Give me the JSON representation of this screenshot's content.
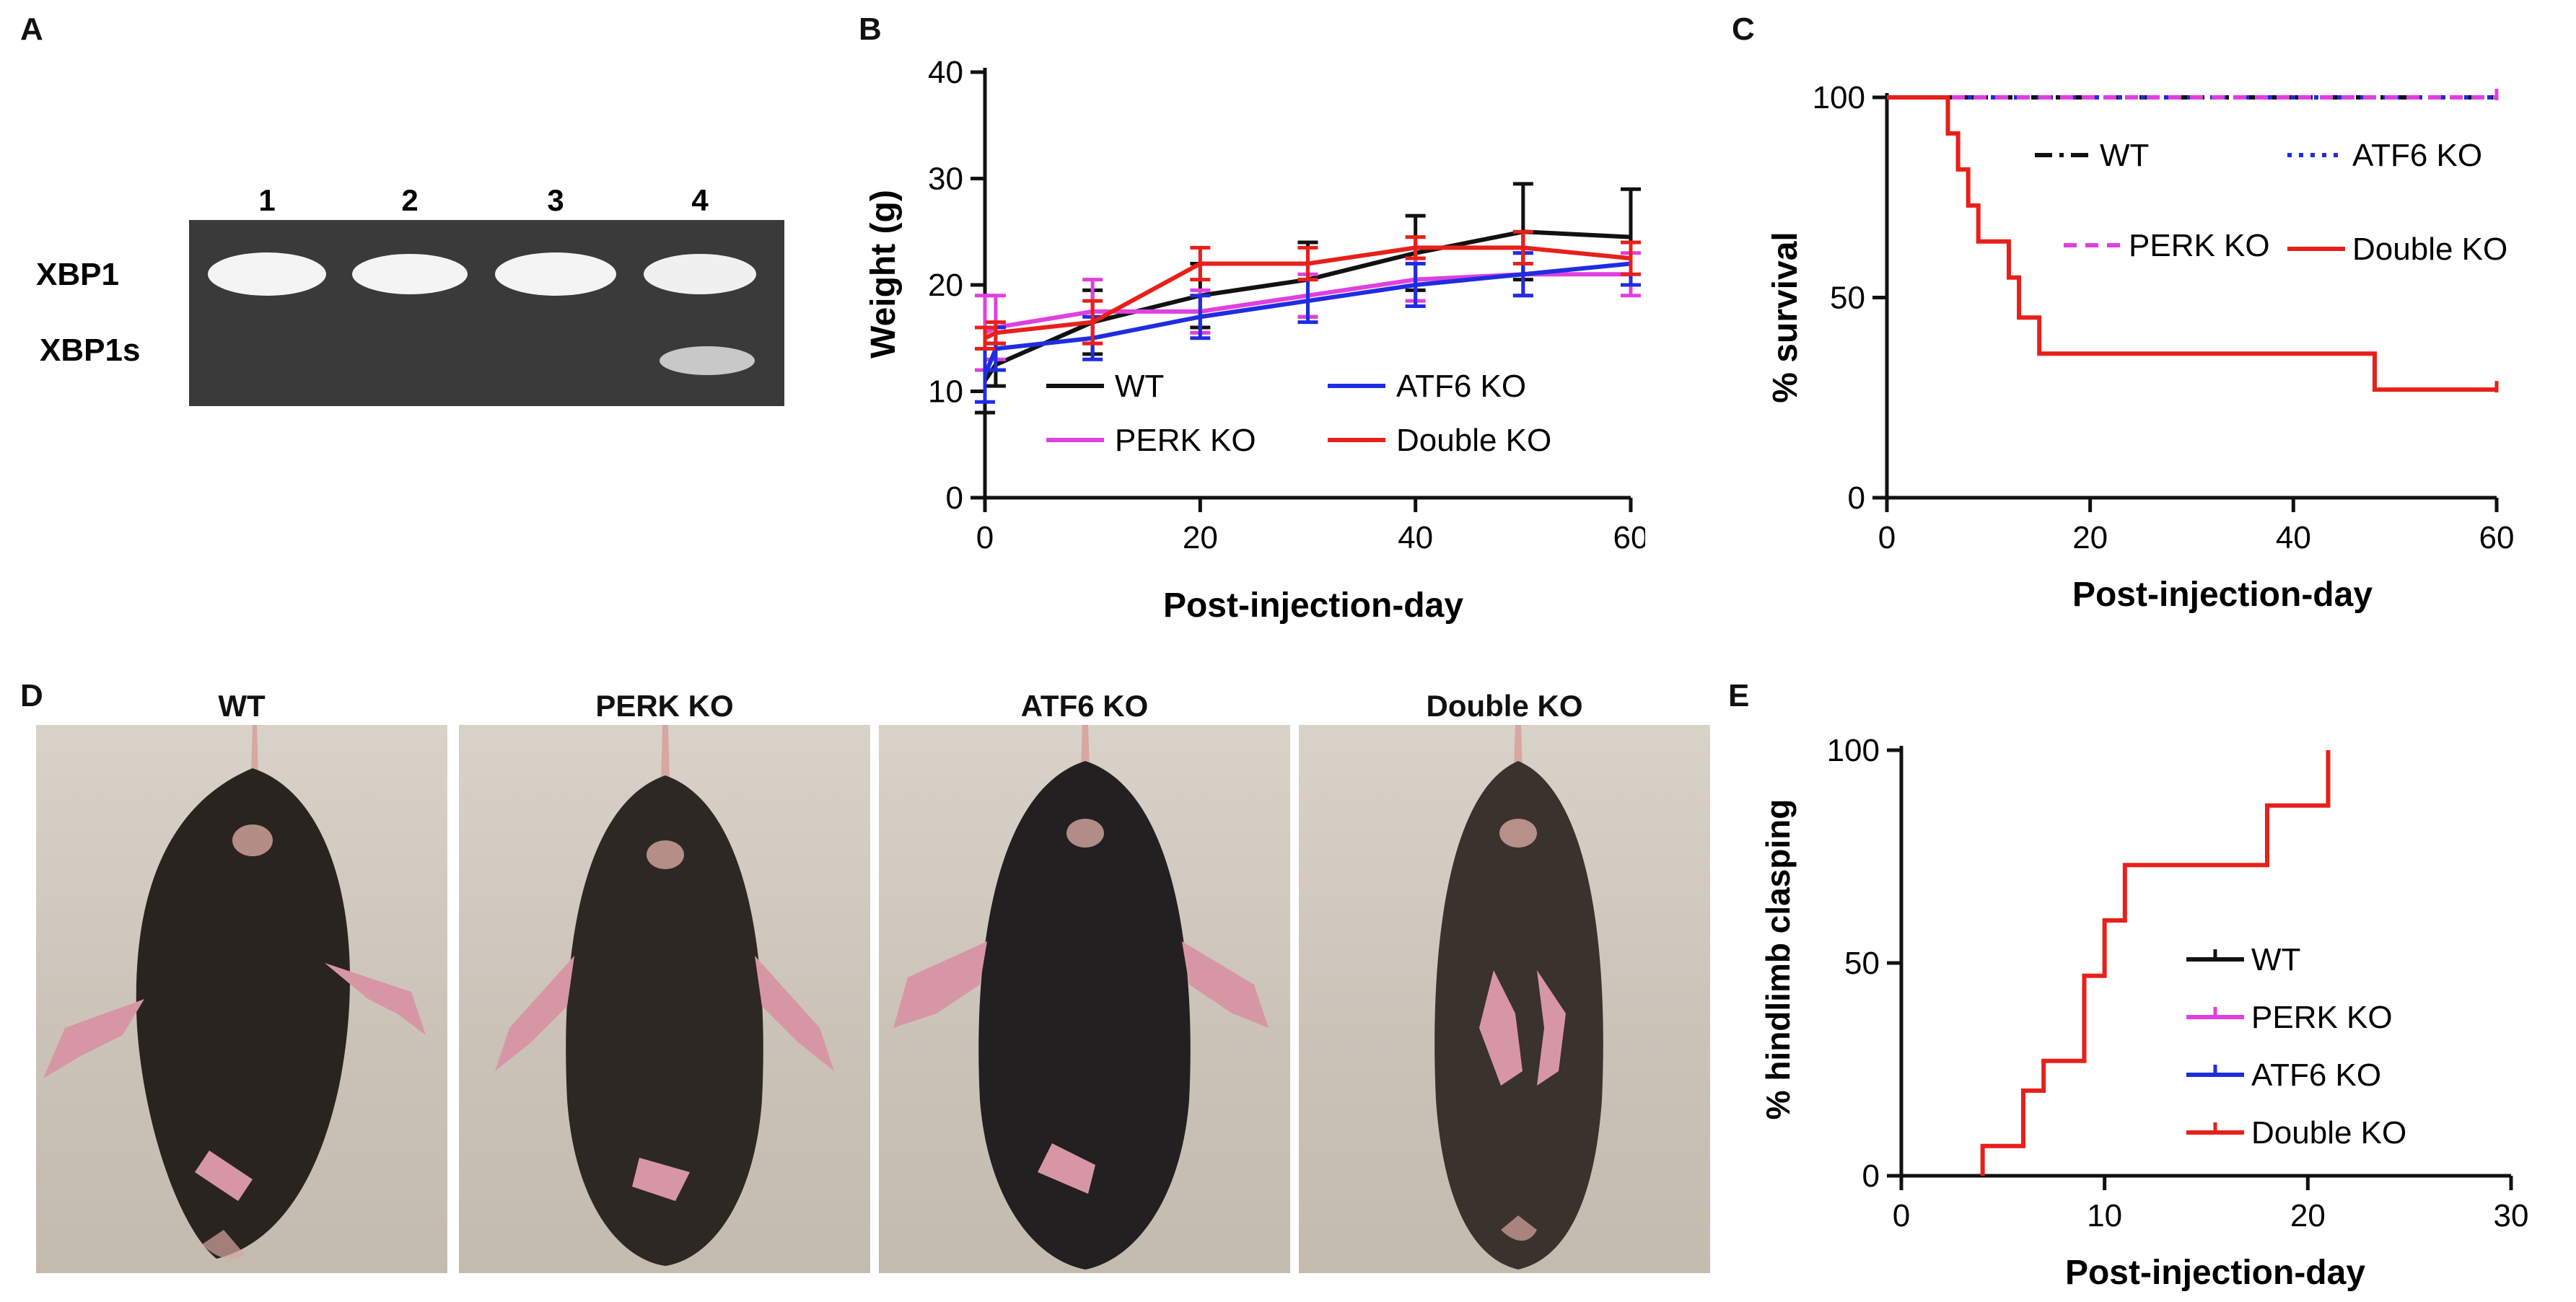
{
  "panel_labels": {
    "a": "A",
    "b": "B",
    "c": "C",
    "d": "D",
    "e": "E"
  },
  "gel": {
    "lanes": [
      "1",
      "2",
      "3",
      "4"
    ],
    "band_labels": [
      "XBP1",
      "XBP1s"
    ],
    "xbp1s_lane_with_band": "4"
  },
  "photos": {
    "titles": [
      "WT",
      "PERK KO",
      "ATF6 KO",
      "Double KO"
    ]
  },
  "colors": {
    "wt": "#111111",
    "perk": "#e040e0",
    "atf6": "#1f2de0",
    "double": "#e8201a"
  },
  "chart_data": [
    {
      "id": "B",
      "type": "line",
      "title": "",
      "xlabel": "Post-injection-day",
      "ylabel": "Weight (g)",
      "xlim": [
        0,
        60
      ],
      "ylim": [
        0,
        40
      ],
      "xticks": [
        "0",
        "20",
        "40",
        "60"
      ],
      "yticks": [
        "0",
        "10",
        "20",
        "30",
        "40"
      ],
      "x": [
        0,
        1,
        10,
        20,
        30,
        40,
        50,
        60
      ],
      "series": [
        {
          "name": "WT",
          "color": "#111111",
          "values": [
            11,
            12.5,
            16.5,
            19,
            20.5,
            23,
            25,
            24.5
          ],
          "err": [
            3,
            2,
            3,
            3,
            3.5,
            3.5,
            4.5,
            4.5
          ]
        },
        {
          "name": "PERK KO",
          "color": "#e040e0",
          "values": [
            15.5,
            16,
            17.5,
            17.5,
            19,
            20.5,
            21,
            21
          ],
          "err": [
            3.5,
            3,
            3,
            2,
            2,
            2,
            2,
            2
          ]
        },
        {
          "name": "ATF6 KO",
          "color": "#1f2de0",
          "values": [
            11.5,
            14,
            15,
            17,
            18.5,
            20,
            21,
            22
          ],
          "err": [
            2.5,
            2,
            2,
            2,
            2,
            2,
            2,
            2
          ]
        },
        {
          "name": "Double KO",
          "color": "#e8201a",
          "values": [
            15,
            15.5,
            16.5,
            22,
            22,
            23.5,
            23.5,
            22.5
          ],
          "err": [
            1,
            1,
            2,
            1.5,
            1.5,
            1,
            1.5,
            1.5
          ]
        }
      ],
      "legend": [
        "WT",
        "ATF6 KO",
        "PERK KO",
        "Double KO"
      ]
    },
    {
      "id": "C",
      "type": "line",
      "title": "",
      "xlabel": "Post-injection-day",
      "ylabel": "% survival",
      "xlim": [
        0,
        60
      ],
      "ylim": [
        0,
        100
      ],
      "xticks": [
        "0",
        "20",
        "40",
        "60"
      ],
      "yticks": [
        "0",
        "50",
        "100"
      ],
      "series": [
        {
          "name": "WT",
          "color": "#111111",
          "x": [
            0,
            60
          ],
          "y": [
            100,
            100
          ]
        },
        {
          "name": "ATF6 KO",
          "color": "#1f2de0",
          "x": [
            0,
            60
          ],
          "y": [
            100,
            100
          ]
        },
        {
          "name": "PERK KO",
          "color": "#e040e0",
          "x": [
            0,
            60
          ],
          "y": [
            100,
            100
          ]
        },
        {
          "name": "Double KO",
          "color": "#e8201a",
          "x": [
            0,
            6,
            7,
            8,
            9,
            12,
            13,
            15,
            48,
            60
          ],
          "y": [
            100,
            91,
            82,
            73,
            64,
            55,
            45,
            36,
            27,
            27
          ]
        }
      ],
      "legend": [
        "WT",
        "ATF6 KO",
        "PERK KO",
        "Double KO"
      ]
    },
    {
      "id": "E",
      "type": "line",
      "title": "",
      "xlabel": "Post-injection-day",
      "ylabel": "% hindlimb clasping",
      "xlim": [
        0,
        30
      ],
      "ylim": [
        0,
        100
      ],
      "xticks": [
        "0",
        "10",
        "20",
        "30"
      ],
      "yticks": [
        "0",
        "50",
        "100"
      ],
      "series": [
        {
          "name": "WT",
          "color": "#111111",
          "x": [],
          "y": []
        },
        {
          "name": "PERK KO",
          "color": "#e040e0",
          "x": [],
          "y": []
        },
        {
          "name": "ATF6 KO",
          "color": "#1f2de0",
          "x": [],
          "y": []
        },
        {
          "name": "Double KO",
          "color": "#e8201a",
          "x": [
            4,
            6,
            7,
            9,
            10,
            11,
            18,
            21
          ],
          "y": [
            7,
            20,
            27,
            47,
            60,
            73,
            87,
            100
          ]
        }
      ],
      "legend": [
        "WT",
        "PERK KO",
        "ATF6 KO",
        "Double KO"
      ]
    }
  ]
}
